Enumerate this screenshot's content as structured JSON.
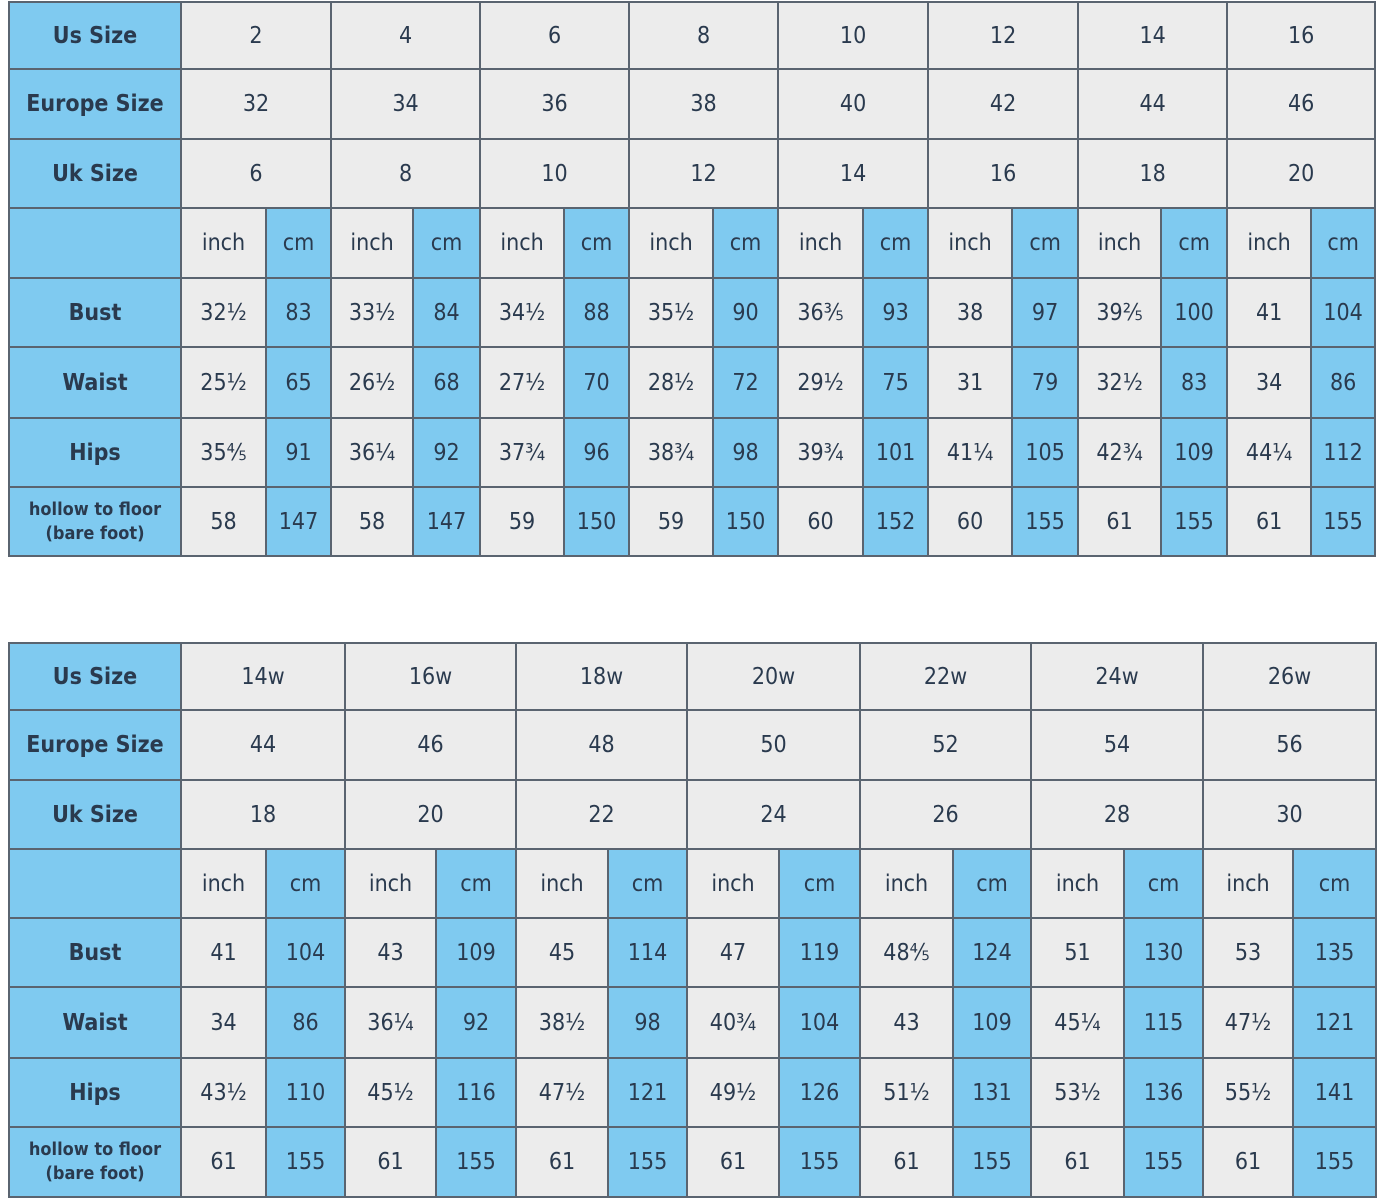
{
  "colors": {
    "header_blue": "#7fcaf0",
    "cell_gray": "#ececec",
    "text": "#2a3a4e"
  },
  "unit_labels": {
    "inch": "inch",
    "cm": "cm"
  },
  "tables": [
    {
      "row_labels": {
        "us": "Us Size",
        "eu": "Europe Size",
        "uk": "Uk Size",
        "bust": "Bust",
        "waist": "Waist",
        "hips": "Hips",
        "hollow": "hollow to floor\n(bare foot)"
      },
      "us": [
        "2",
        "4",
        "6",
        "8",
        "10",
        "12",
        "14",
        "16"
      ],
      "eu": [
        "32",
        "34",
        "36",
        "38",
        "40",
        "42",
        "44",
        "46"
      ],
      "uk": [
        "6",
        "8",
        "10",
        "12",
        "14",
        "16",
        "18",
        "20"
      ],
      "bust": [
        [
          "32½",
          "83"
        ],
        [
          "33½",
          "84"
        ],
        [
          "34½",
          "88"
        ],
        [
          "35½",
          "90"
        ],
        [
          "36⅗",
          "93"
        ],
        [
          "38",
          "97"
        ],
        [
          "39⅖",
          "100"
        ],
        [
          "41",
          "104"
        ]
      ],
      "waist": [
        [
          "25½",
          "65"
        ],
        [
          "26½",
          "68"
        ],
        [
          "27½",
          "70"
        ],
        [
          "28½",
          "72"
        ],
        [
          "29½",
          "75"
        ],
        [
          "31",
          "79"
        ],
        [
          "32½",
          "83"
        ],
        [
          "34",
          "86"
        ]
      ],
      "hips": [
        [
          "35⅘",
          "91"
        ],
        [
          "36¼",
          "92"
        ],
        [
          "37¾",
          "96"
        ],
        [
          "38¾",
          "98"
        ],
        [
          "39¾",
          "101"
        ],
        [
          "41¼",
          "105"
        ],
        [
          "42¾",
          "109"
        ],
        [
          "44¼",
          "112"
        ]
      ],
      "hollow": [
        [
          "58",
          "147"
        ],
        [
          "58",
          "147"
        ],
        [
          "59",
          "150"
        ],
        [
          "59",
          "150"
        ],
        [
          "60",
          "152"
        ],
        [
          "60",
          "155"
        ],
        [
          "61",
          "155"
        ],
        [
          "61",
          "155"
        ]
      ]
    },
    {
      "row_labels": {
        "us": "Us Size",
        "eu": "Europe Size",
        "uk": "Uk Size",
        "bust": "Bust",
        "waist": "Waist",
        "hips": "Hips",
        "hollow": "hollow to floor\n(bare foot)"
      },
      "us": [
        "14w",
        "16w",
        "18w",
        "20w",
        "22w",
        "24w",
        "26w"
      ],
      "eu": [
        "44",
        "46",
        "48",
        "50",
        "52",
        "54",
        "56"
      ],
      "uk": [
        "18",
        "20",
        "22",
        "24",
        "26",
        "28",
        "30"
      ],
      "bust": [
        [
          "41",
          "104"
        ],
        [
          "43",
          "109"
        ],
        [
          "45",
          "114"
        ],
        [
          "47",
          "119"
        ],
        [
          "48⅘",
          "124"
        ],
        [
          "51",
          "130"
        ],
        [
          "53",
          "135"
        ]
      ],
      "waist": [
        [
          "34",
          "86"
        ],
        [
          "36¼",
          "92"
        ],
        [
          "38½",
          "98"
        ],
        [
          "40¾",
          "104"
        ],
        [
          "43",
          "109"
        ],
        [
          "45¼",
          "115"
        ],
        [
          "47½",
          "121"
        ]
      ],
      "hips": [
        [
          "43½",
          "110"
        ],
        [
          "45½",
          "116"
        ],
        [
          "47½",
          "121"
        ],
        [
          "49½",
          "126"
        ],
        [
          "51½",
          "131"
        ],
        [
          "53½",
          "136"
        ],
        [
          "55½",
          "141"
        ]
      ],
      "hollow": [
        [
          "61",
          "155"
        ],
        [
          "61",
          "155"
        ],
        [
          "61",
          "155"
        ],
        [
          "61",
          "155"
        ],
        [
          "61",
          "155"
        ],
        [
          "61",
          "155"
        ],
        [
          "61",
          "155"
        ]
      ]
    }
  ]
}
